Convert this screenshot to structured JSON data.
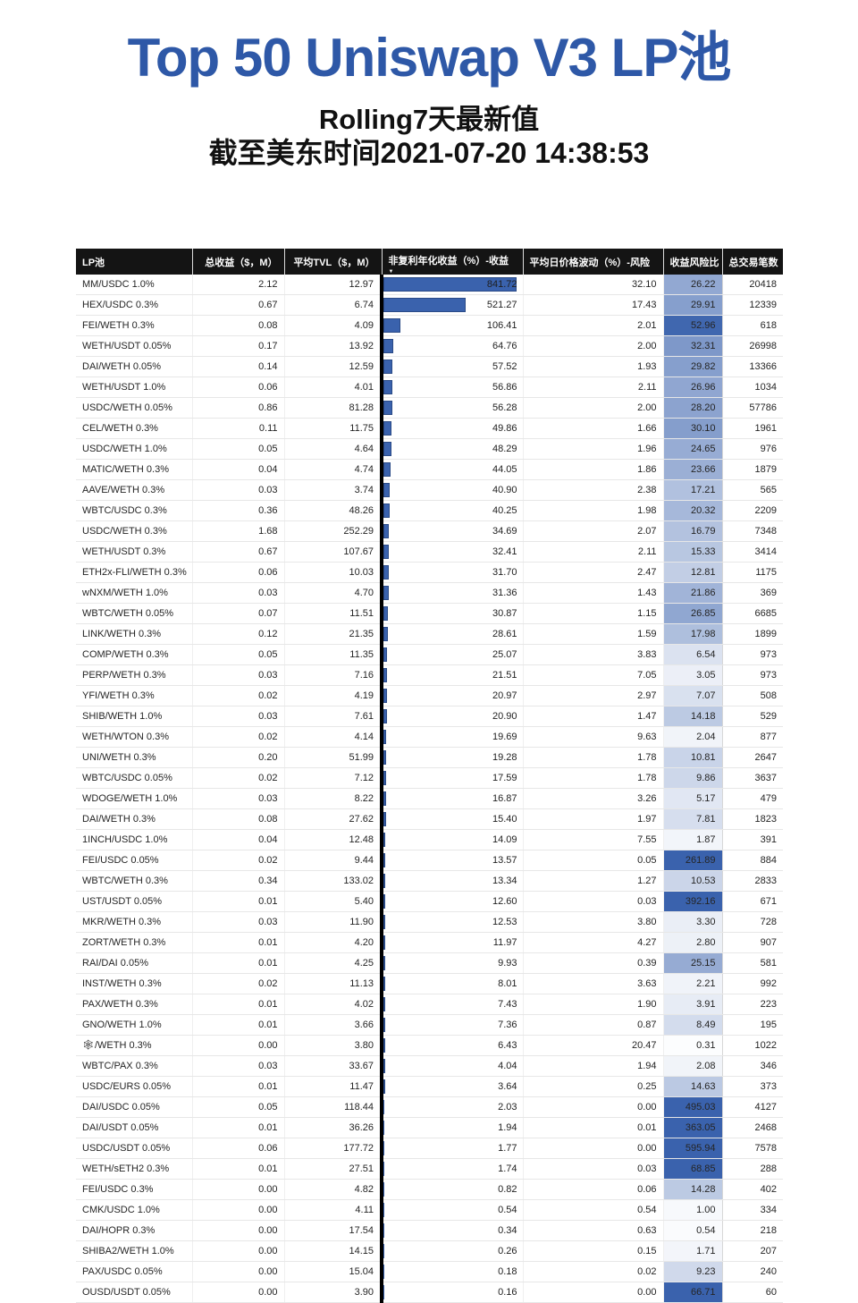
{
  "title": "Top 50 Uniswap V3 LP池",
  "subtitle": {
    "line1": "Rolling7天最新值",
    "line2": "截至美东时间2021-07-20 14:38:53"
  },
  "colors": {
    "title_blue": "#2E58A7",
    "bar_blue": "#3A62AD",
    "ratio_max_blue": "#3A62AD",
    "header_bg": "#141414",
    "header_text": "#FFFFFF"
  },
  "icons": {
    "sort_desc": "▼"
  },
  "chart_data": {
    "type": "table",
    "title": "Top 50 Uniswap V3 LP池",
    "columns": [
      "LP池",
      "总收益（$，M）",
      "平均TVL（$，M）",
      "非复利年化收益（%）-收益",
      "平均日价格波动（%）-风险",
      "收益风险比",
      "总交易笔数"
    ],
    "sorted_by": {
      "column_index": 3,
      "direction": "desc"
    },
    "bar_column_max": 841.72,
    "ratio_scale_saturation": 55,
    "rows": [
      [
        "MM/USDC 1.0%",
        "2.12",
        "12.97",
        "841.72",
        "32.10",
        "26.22",
        "20418"
      ],
      [
        "HEX/USDC 0.3%",
        "0.67",
        "6.74",
        "521.27",
        "17.43",
        "29.91",
        "12339"
      ],
      [
        "FEI/WETH 0.3%",
        "0.08",
        "4.09",
        "106.41",
        "2.01",
        "52.96",
        "618"
      ],
      [
        "WETH/USDT 0.05%",
        "0.17",
        "13.92",
        "64.76",
        "2.00",
        "32.31",
        "26998"
      ],
      [
        "DAI/WETH 0.05%",
        "0.14",
        "12.59",
        "57.52",
        "1.93",
        "29.82",
        "13366"
      ],
      [
        "WETH/USDT 1.0%",
        "0.06",
        "4.01",
        "56.86",
        "2.11",
        "26.96",
        "1034"
      ],
      [
        "USDC/WETH 0.05%",
        "0.86",
        "81.28",
        "56.28",
        "2.00",
        "28.20",
        "57786"
      ],
      [
        "CEL/WETH 0.3%",
        "0.11",
        "11.75",
        "49.86",
        "1.66",
        "30.10",
        "1961"
      ],
      [
        "USDC/WETH 1.0%",
        "0.05",
        "4.64",
        "48.29",
        "1.96",
        "24.65",
        "976"
      ],
      [
        "MATIC/WETH 0.3%",
        "0.04",
        "4.74",
        "44.05",
        "1.86",
        "23.66",
        "1879"
      ],
      [
        "AAVE/WETH 0.3%",
        "0.03",
        "3.74",
        "40.90",
        "2.38",
        "17.21",
        "565"
      ],
      [
        "WBTC/USDC 0.3%",
        "0.36",
        "48.26",
        "40.25",
        "1.98",
        "20.32",
        "2209"
      ],
      [
        "USDC/WETH 0.3%",
        "1.68",
        "252.29",
        "34.69",
        "2.07",
        "16.79",
        "7348"
      ],
      [
        "WETH/USDT 0.3%",
        "0.67",
        "107.67",
        "32.41",
        "2.11",
        "15.33",
        "3414"
      ],
      [
        "ETH2x-FLI/WETH 0.3%",
        "0.06",
        "10.03",
        "31.70",
        "2.47",
        "12.81",
        "1175"
      ],
      [
        "wNXM/WETH 1.0%",
        "0.03",
        "4.70",
        "31.36",
        "1.43",
        "21.86",
        "369"
      ],
      [
        "WBTC/WETH 0.05%",
        "0.07",
        "11.51",
        "30.87",
        "1.15",
        "26.85",
        "6685"
      ],
      [
        "LINK/WETH 0.3%",
        "0.12",
        "21.35",
        "28.61",
        "1.59",
        "17.98",
        "1899"
      ],
      [
        "COMP/WETH 0.3%",
        "0.05",
        "11.35",
        "25.07",
        "3.83",
        "6.54",
        "973"
      ],
      [
        "PERP/WETH 0.3%",
        "0.03",
        "7.16",
        "21.51",
        "7.05",
        "3.05",
        "973"
      ],
      [
        "YFI/WETH 0.3%",
        "0.02",
        "4.19",
        "20.97",
        "2.97",
        "7.07",
        "508"
      ],
      [
        "SHIB/WETH 1.0%",
        "0.03",
        "7.61",
        "20.90",
        "1.47",
        "14.18",
        "529"
      ],
      [
        "WETH/WTON 0.3%",
        "0.02",
        "4.14",
        "19.69",
        "9.63",
        "2.04",
        "877"
      ],
      [
        "UNI/WETH 0.3%",
        "0.20",
        "51.99",
        "19.28",
        "1.78",
        "10.81",
        "2647"
      ],
      [
        "WBTC/USDC 0.05%",
        "0.02",
        "7.12",
        "17.59",
        "1.78",
        "9.86",
        "3637"
      ],
      [
        "WDOGE/WETH 1.0%",
        "0.03",
        "8.22",
        "16.87",
        "3.26",
        "5.17",
        "479"
      ],
      [
        "DAI/WETH 0.3%",
        "0.08",
        "27.62",
        "15.40",
        "1.97",
        "7.81",
        "1823"
      ],
      [
        "1INCH/USDC 1.0%",
        "0.04",
        "12.48",
        "14.09",
        "7.55",
        "1.87",
        "391"
      ],
      [
        "FEI/USDC 0.05%",
        "0.02",
        "9.44",
        "13.57",
        "0.05",
        "261.89",
        "884"
      ],
      [
        "WBTC/WETH 0.3%",
        "0.34",
        "133.02",
        "13.34",
        "1.27",
        "10.53",
        "2833"
      ],
      [
        "UST/USDT 0.05%",
        "0.01",
        "5.40",
        "12.60",
        "0.03",
        "392.16",
        "671"
      ],
      [
        "MKR/WETH 0.3%",
        "0.03",
        "11.90",
        "12.53",
        "3.80",
        "3.30",
        "728"
      ],
      [
        "ZORT/WETH 0.3%",
        "0.01",
        "4.20",
        "11.97",
        "4.27",
        "2.80",
        "907"
      ],
      [
        "RAI/DAI 0.05%",
        "0.01",
        "4.25",
        "9.93",
        "0.39",
        "25.15",
        "581"
      ],
      [
        "INST/WETH 0.3%",
        "0.02",
        "11.13",
        "8.01",
        "3.63",
        "2.21",
        "992"
      ],
      [
        "PAX/WETH 0.3%",
        "0.01",
        "4.02",
        "7.43",
        "1.90",
        "3.91",
        "223"
      ],
      [
        "GNO/WETH 1.0%",
        "0.01",
        "3.66",
        "7.36",
        "0.87",
        "8.49",
        "195"
      ],
      [
        "🕸/WETH 0.3%",
        "0.00",
        "3.80",
        "6.43",
        "20.47",
        "0.31",
        "1022"
      ],
      [
        "WBTC/PAX 0.3%",
        "0.03",
        "33.67",
        "4.04",
        "1.94",
        "2.08",
        "346"
      ],
      [
        "USDC/EURS 0.05%",
        "0.01",
        "11.47",
        "3.64",
        "0.25",
        "14.63",
        "373"
      ],
      [
        "DAI/USDC 0.05%",
        "0.05",
        "118.44",
        "2.03",
        "0.00",
        "495.03",
        "4127"
      ],
      [
        "DAI/USDT 0.05%",
        "0.01",
        "36.26",
        "1.94",
        "0.01",
        "363.05",
        "2468"
      ],
      [
        "USDC/USDT 0.05%",
        "0.06",
        "177.72",
        "1.77",
        "0.00",
        "595.94",
        "7578"
      ],
      [
        "WETH/sETH2 0.3%",
        "0.01",
        "27.51",
        "1.74",
        "0.03",
        "68.85",
        "288"
      ],
      [
        "FEI/USDC 0.3%",
        "0.00",
        "4.82",
        "0.82",
        "0.06",
        "14.28",
        "402"
      ],
      [
        "CMK/USDC 1.0%",
        "0.00",
        "4.11",
        "0.54",
        "0.54",
        "1.00",
        "334"
      ],
      [
        "DAI/HOPR 0.3%",
        "0.00",
        "17.54",
        "0.34",
        "0.63",
        "0.54",
        "218"
      ],
      [
        "SHIBA2/WETH 1.0%",
        "0.00",
        "14.15",
        "0.26",
        "0.15",
        "1.71",
        "207"
      ],
      [
        "PAX/USDC 0.05%",
        "0.00",
        "15.04",
        "0.18",
        "0.02",
        "9.23",
        "240"
      ],
      [
        "OUSD/USDT 0.05%",
        "0.00",
        "3.90",
        "0.16",
        "0.00",
        "66.71",
        "60"
      ]
    ]
  }
}
